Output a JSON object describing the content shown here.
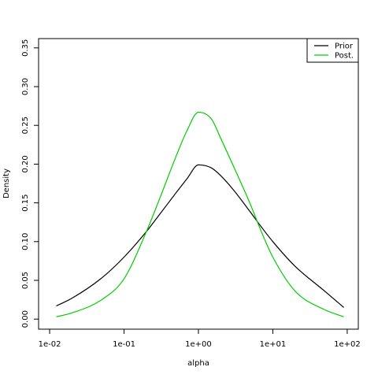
{
  "chart_data": {
    "type": "line",
    "title": "",
    "xlabel": "alpha",
    "ylabel": "Density",
    "x_scale": "log",
    "xlim": [
      0.0071,
      141
    ],
    "ylim": [
      -0.013,
      0.362
    ],
    "x_ticks": [
      {
        "value": 0.01,
        "label": "1e-02"
      },
      {
        "value": 0.1,
        "label": "1e-01"
      },
      {
        "value": 1,
        "label": "1e+00"
      },
      {
        "value": 10,
        "label": "1e+01"
      },
      {
        "value": 100,
        "label": "1e+02"
      }
    ],
    "y_ticks": [
      {
        "value": 0.0,
        "label": "0.00"
      },
      {
        "value": 0.05,
        "label": "0.05"
      },
      {
        "value": 0.1,
        "label": "0.10"
      },
      {
        "value": 0.15,
        "label": "0.15"
      },
      {
        "value": 0.2,
        "label": "0.20"
      },
      {
        "value": 0.25,
        "label": "0.25"
      },
      {
        "value": 0.3,
        "label": "0.30"
      },
      {
        "value": 0.35,
        "label": "0.35"
      }
    ],
    "grid": false,
    "legend_position": "top-right",
    "series": [
      {
        "name": "Prior",
        "color": "#000000",
        "x": [
          0.0123,
          0.02,
          0.05,
          0.1,
          0.2,
          0.3,
          0.5,
          0.7,
          1.0,
          1.5,
          2.0,
          3.0,
          5.0,
          7.0,
          10,
          20,
          50,
          90
        ],
        "y": [
          0.017,
          0.027,
          0.053,
          0.08,
          0.113,
          0.135,
          0.163,
          0.181,
          0.199,
          0.195,
          0.185,
          0.166,
          0.138,
          0.119,
          0.1,
          0.068,
          0.036,
          0.015
        ]
      },
      {
        "name": "Post.",
        "color": "#00cd00",
        "x": [
          0.0123,
          0.02,
          0.05,
          0.1,
          0.2,
          0.3,
          0.5,
          0.7,
          1.0,
          1.5,
          2.0,
          3.0,
          5.0,
          7.0,
          10,
          20,
          50,
          90
        ],
        "y": [
          0.003,
          0.008,
          0.025,
          0.052,
          0.113,
          0.155,
          0.21,
          0.243,
          0.267,
          0.258,
          0.233,
          0.196,
          0.148,
          0.113,
          0.08,
          0.036,
          0.012,
          0.003
        ]
      }
    ]
  }
}
